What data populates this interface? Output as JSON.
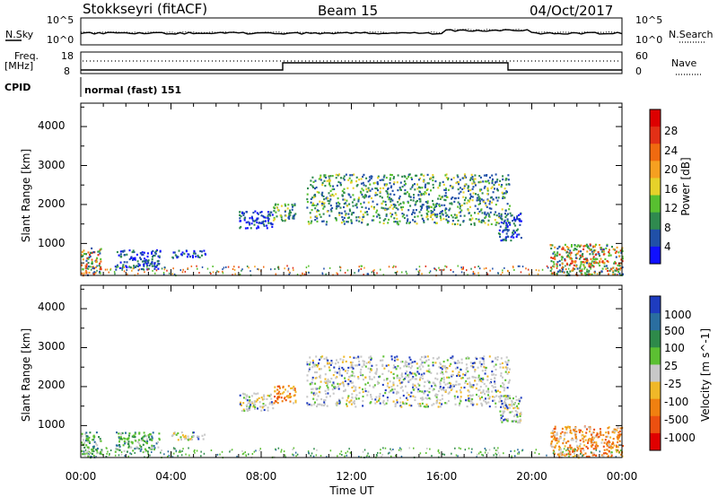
{
  "header": {
    "title": "Stokkseyri (fitACF)",
    "beam": "Beam 15",
    "date": "04/Oct/2017"
  },
  "noise_panel": {
    "left_label": "N.Sky",
    "left_tick_top": "10^5",
    "left_tick_bottom": "10^0",
    "right_label": "N.Search",
    "right_tick_top": "10^5",
    "right_tick_bottom": "10^0"
  },
  "freq_panel": {
    "left_label_1": "Freq.",
    "left_label_2": "[MHz]",
    "left_tick_top": "18",
    "left_tick_bottom": "8",
    "right_label": "Nave",
    "right_tick_top": "60",
    "right_tick_bottom": "0",
    "cpid_label": "CPID",
    "cpid_value": "normal (fast) 151"
  },
  "x_axis": {
    "label": "Time UT",
    "ticks": [
      "00:00",
      "04:00",
      "08:00",
      "12:00",
      "16:00",
      "20:00",
      "00:00"
    ]
  },
  "chart_data": [
    {
      "type": "heatmap",
      "ylabel": "Slant Range [km]",
      "y_ticks": [
        "1000",
        "2000",
        "3000",
        "4000"
      ],
      "ylim": [
        180,
        4600
      ],
      "xlim_hours": [
        0,
        24
      ],
      "colorbar": {
        "label": "Power [dB]",
        "ticks": [
          "4",
          "8",
          "12",
          "16",
          "20",
          "24",
          "28"
        ],
        "colors": [
          "#1010ff",
          "#2050a8",
          "#2f8a4f",
          "#58c030",
          "#e6d22a",
          "#f6a020",
          "#f06a10",
          "#e23016",
          "#dd0000"
        ]
      },
      "scatter_regions": [
        {
          "time_range": [
            0.0,
            0.9
          ],
          "range_km": [
            200,
            900
          ],
          "color": "power-high"
        },
        {
          "time_range": [
            1.5,
            3.5
          ],
          "range_km": [
            350,
            850
          ],
          "color": "power-low"
        },
        {
          "time_range": [
            4.0,
            5.5
          ],
          "range_km": [
            650,
            850
          ],
          "color": "power-low"
        },
        {
          "time_range": [
            7.0,
            8.5
          ],
          "range_km": [
            1400,
            1850
          ],
          "color": "power-low"
        },
        {
          "time_range": [
            8.5,
            9.5
          ],
          "range_km": [
            1600,
            2050
          ],
          "color": "power-mid"
        },
        {
          "time_range": [
            10.0,
            19.0
          ],
          "range_km": [
            1500,
            2800
          ],
          "color": "power-mid"
        },
        {
          "time_range": [
            18.5,
            19.5
          ],
          "range_km": [
            1100,
            1800
          ],
          "color": "power-low"
        },
        {
          "time_range": [
            20.8,
            24.0
          ],
          "range_km": [
            200,
            1000
          ],
          "color": "power-high"
        }
      ]
    },
    {
      "type": "heatmap",
      "ylabel": "Slant Range [km]",
      "y_ticks": [
        "1000",
        "2000",
        "3000",
        "4000"
      ],
      "ylim": [
        180,
        4600
      ],
      "xlim_hours": [
        0,
        24
      ],
      "colorbar": {
        "label": "Velocity [m s^-1]",
        "ticks": [
          "1000",
          "500",
          "100",
          "25",
          "-25",
          "-100",
          "-500",
          "-1000"
        ],
        "colors": [
          "#1e3cc0",
          "#2a6ea0",
          "#2e8a4a",
          "#5cc032",
          "#c8c8c8",
          "#f0b828",
          "#f08010",
          "#ec5010",
          "#e00000"
        ]
      },
      "scatter_regions": [
        {
          "time_range": [
            0.0,
            0.9
          ],
          "range_km": [
            200,
            900
          ],
          "color": "vel-green"
        },
        {
          "time_range": [
            1.5,
            3.5
          ],
          "range_km": [
            350,
            850
          ],
          "color": "vel-green"
        },
        {
          "time_range": [
            4.0,
            5.5
          ],
          "range_km": [
            650,
            850
          ],
          "color": "vel-grey"
        },
        {
          "time_range": [
            7.0,
            8.5
          ],
          "range_km": [
            1400,
            1850
          ],
          "color": "vel-grey"
        },
        {
          "time_range": [
            8.5,
            9.5
          ],
          "range_km": [
            1600,
            2050
          ],
          "color": "vel-orange"
        },
        {
          "time_range": [
            10.0,
            19.0
          ],
          "range_km": [
            1500,
            2800
          ],
          "color": "vel-grey"
        },
        {
          "time_range": [
            18.5,
            19.5
          ],
          "range_km": [
            1100,
            1800
          ],
          "color": "vel-grey"
        },
        {
          "time_range": [
            20.8,
            24.0
          ],
          "range_km": [
            200,
            1000
          ],
          "color": "vel-orange"
        }
      ]
    }
  ]
}
